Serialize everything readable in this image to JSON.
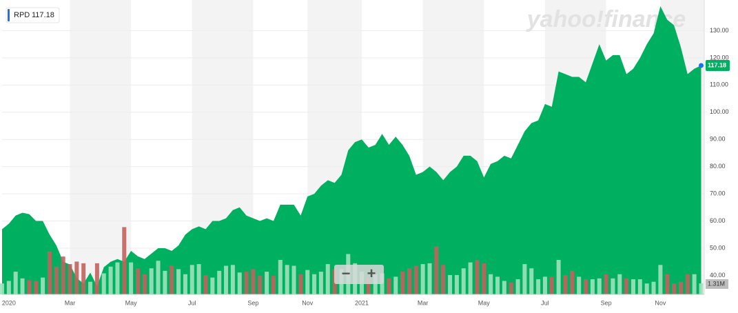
{
  "chart_data": {
    "type": "area",
    "ticker": "RPD",
    "last_label": "117.18",
    "watermark": "yahoo!finance",
    "zoom_out": "−",
    "zoom_in": "+",
    "color": "#00b061",
    "categories": [
      null,
      "2020",
      null,
      null,
      null,
      null,
      null,
      null,
      null,
      null,
      "Mar",
      null,
      null,
      null,
      null,
      null,
      null,
      null,
      null,
      "May",
      null,
      null,
      null,
      null,
      null,
      null,
      null,
      null,
      "Jul",
      null,
      null,
      null,
      null,
      null,
      null,
      null,
      null,
      "Sep",
      null,
      null,
      null,
      null,
      null,
      null,
      null,
      "Nov",
      null,
      null,
      null,
      null,
      null,
      null,
      null,
      "2021",
      null,
      null,
      null,
      null,
      null,
      null,
      null,
      null,
      "Mar",
      null,
      null,
      null,
      null,
      null,
      null,
      null,
      null,
      "May",
      null,
      null,
      null,
      null,
      null,
      null,
      null,
      null,
      "Jul",
      null,
      null,
      null,
      null,
      null,
      null,
      null,
      null,
      "Sep",
      null,
      null,
      null,
      null,
      null,
      null,
      null,
      "Nov",
      null,
      null,
      null,
      null,
      null,
      null
    ],
    "values": [
      57,
      59,
      62,
      63,
      62.5,
      60,
      60,
      55,
      51,
      45,
      44,
      39,
      37,
      41,
      36,
      43,
      45,
      46,
      45,
      49,
      47,
      46,
      48,
      50,
      50,
      49,
      51,
      55,
      57,
      58,
      57,
      60,
      60,
      61,
      64,
      65,
      62,
      61,
      60,
      61,
      60,
      66,
      66,
      66,
      62,
      69,
      70,
      73,
      75,
      74,
      77,
      86,
      89,
      90,
      87,
      88,
      92,
      88,
      91,
      88,
      84,
      77,
      78,
      80,
      78,
      75,
      78,
      80,
      84,
      84,
      82,
      76,
      81,
      82,
      84,
      83,
      88,
      93,
      96,
      97,
      103,
      102,
      115,
      114,
      113,
      113,
      111,
      118,
      125,
      119,
      121,
      121,
      114,
      116,
      120,
      125,
      129,
      139,
      134,
      132,
      124,
      114,
      116,
      117.18
    ],
    "volume": {
      "values": [
        1.3,
        1.6,
        2.7,
        1.9,
        1.7,
        1.6,
        2.0,
        5.1,
        3.3,
        4.5,
        3.6,
        3.9,
        3.7,
        1.5,
        3.7,
        2.5,
        3.3,
        3.8,
        8.0,
        3.8,
        3.1,
        2.4,
        3.1,
        4.0,
        2.8,
        3.4,
        3.0,
        2.4,
        3.5,
        3.6,
        2.3,
        2.0,
        2.8,
        3.4,
        3.5,
        2.6,
        2.7,
        3.0,
        2.2,
        2.7,
        2.2,
        4.1,
        3.5,
        3.4,
        2.4,
        2.9,
        2.4,
        2.7,
        3.6,
        3.0,
        3.0,
        4.8,
        3.7,
        2.7,
        2.0,
        2.4,
        2.5,
        1.9,
        2.1,
        2.7,
        3.1,
        3.4,
        3.6,
        3.7,
        5.7,
        3.5,
        2.3,
        2.3,
        3.1,
        3.8,
        4.1,
        3.7,
        2.4,
        2.1,
        1.6,
        1.4,
        1.8,
        3.6,
        3.1,
        1.8,
        2.1,
        2.1,
        4.1,
        2.3,
        2.8,
        2.1,
        1.8,
        1.8,
        1.9,
        2.4,
        1.9,
        2.4,
        1.9,
        1.8,
        1.8,
        1.3,
        1.5,
        3.5,
        2.4,
        1.3,
        1.5,
        2.4,
        2.4,
        1.31
      ],
      "last_label": "1.31M",
      "up_color": "#9fe2bb",
      "down_color": "#c2635d"
    },
    "ylim": [
      33,
      140
    ],
    "yticks": [
      {
        "value": 40,
        "label": "40.00"
      },
      {
        "value": 50,
        "label": "50.00"
      },
      {
        "value": 60,
        "label": "60.00"
      },
      {
        "value": 70,
        "label": "70.00"
      },
      {
        "value": 80,
        "label": "80.00"
      },
      {
        "value": 90,
        "label": "90.00"
      },
      {
        "value": 100,
        "label": "100.00"
      },
      {
        "value": 110,
        "label": "110.00"
      },
      {
        "value": 120,
        "label": "120.00"
      },
      {
        "value": 130,
        "label": "130.00"
      }
    ],
    "grid": true
  }
}
